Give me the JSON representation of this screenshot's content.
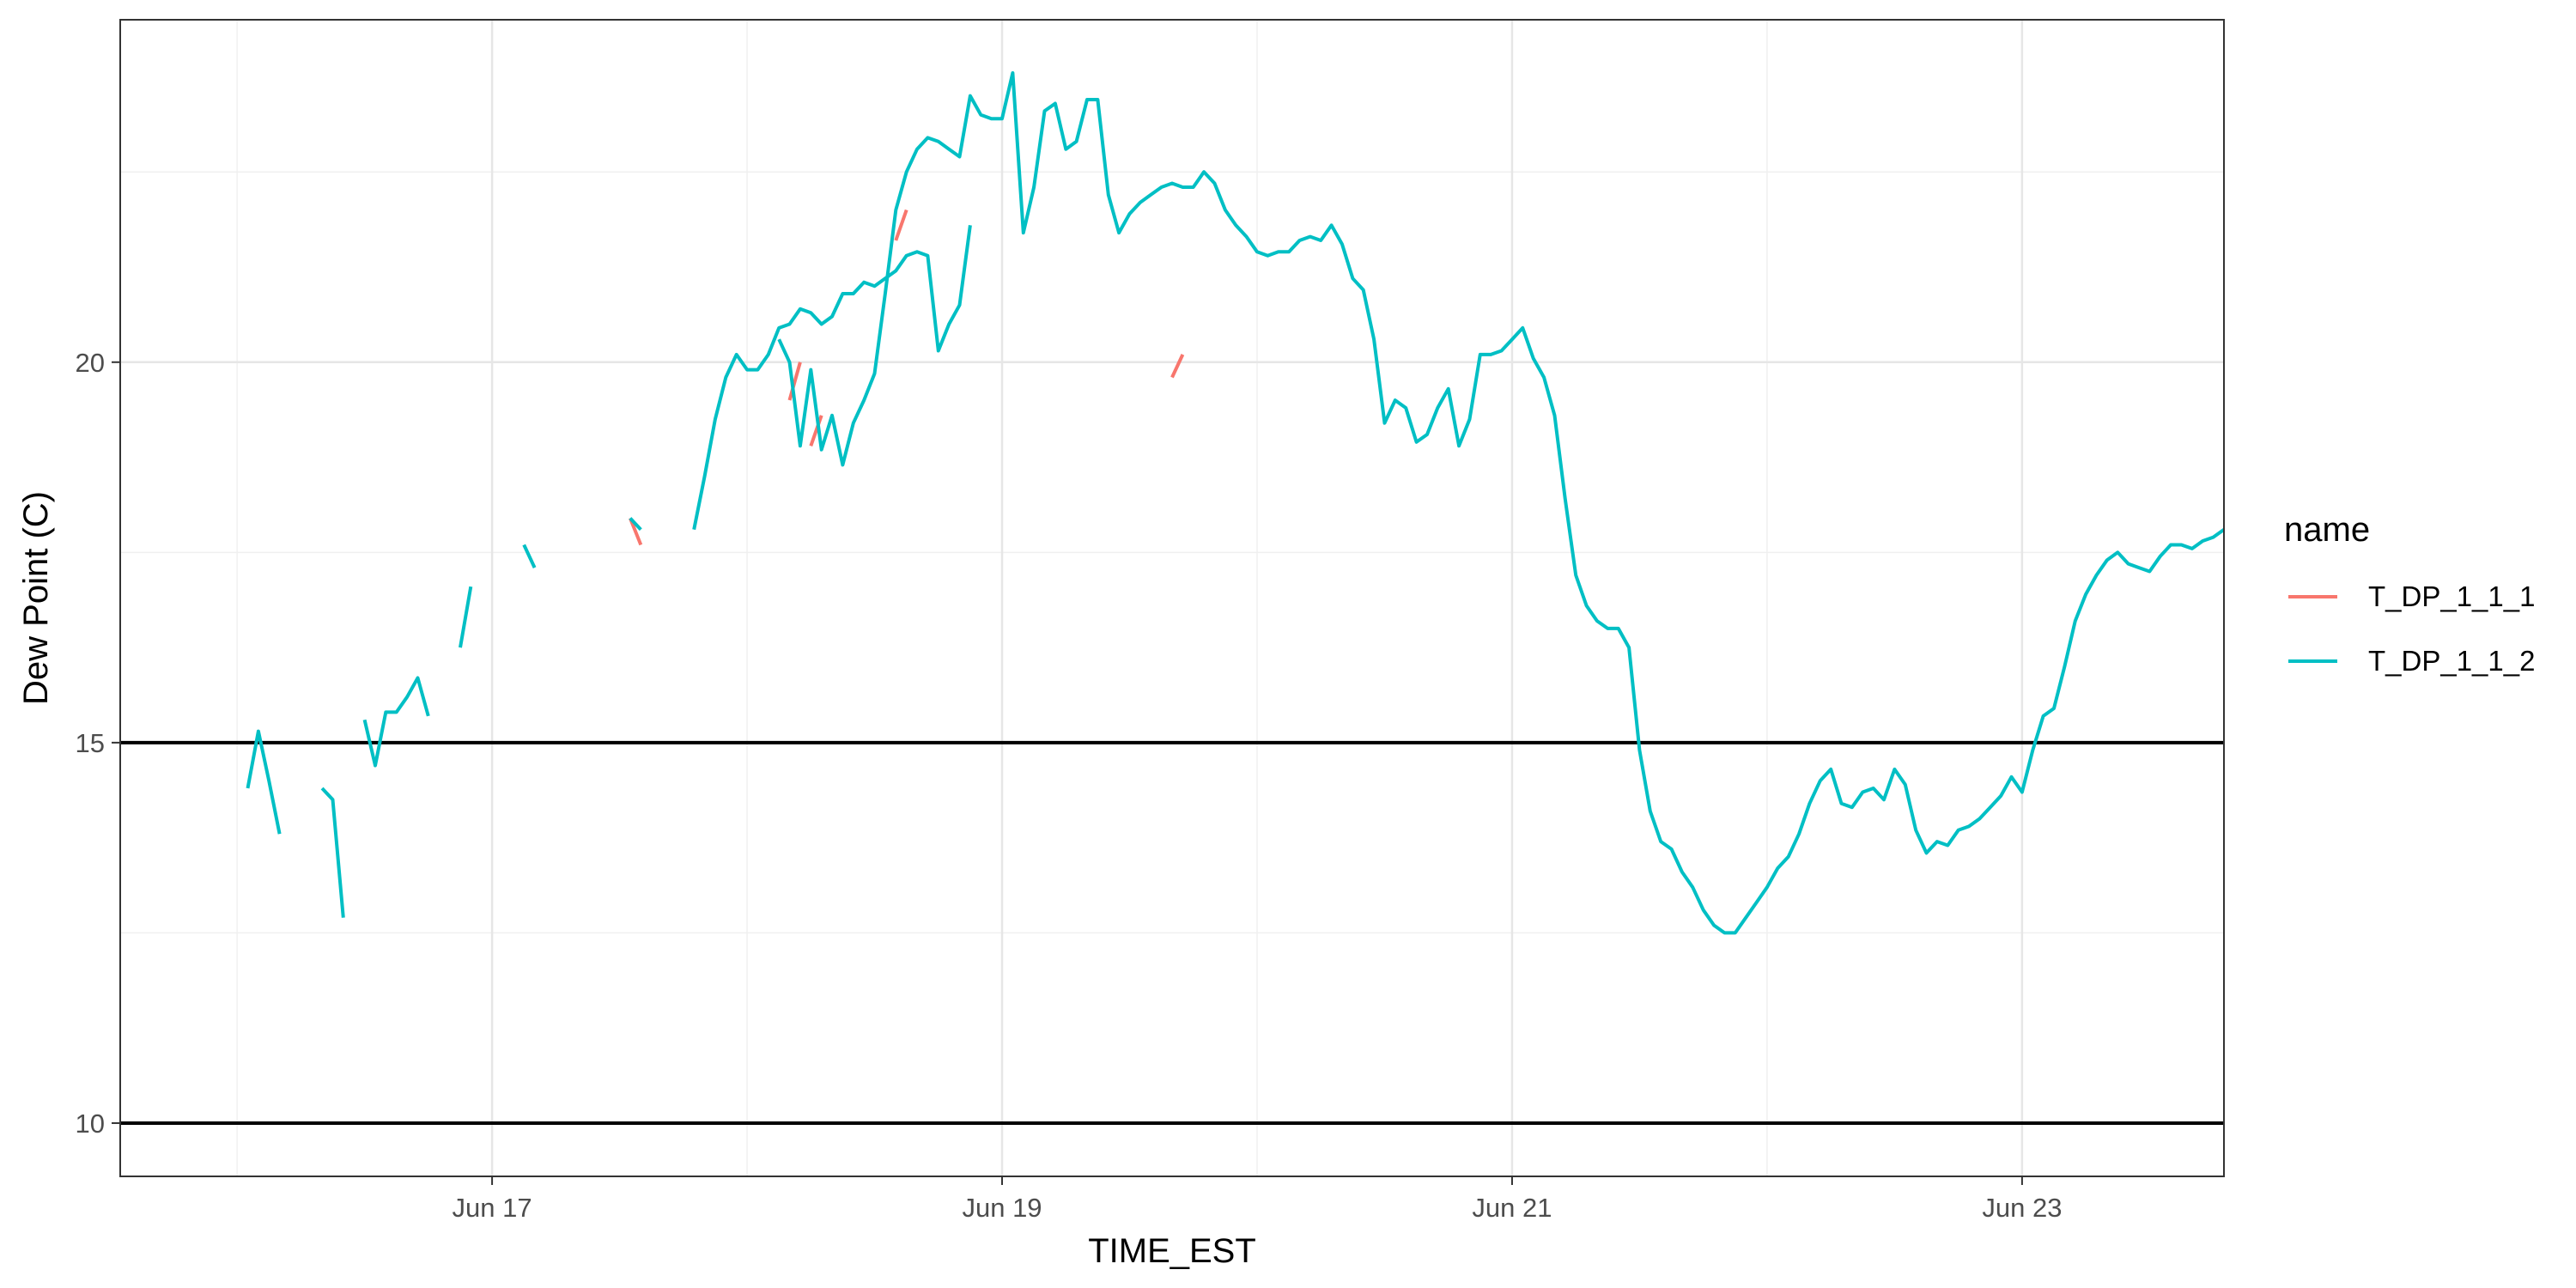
{
  "chart_data": {
    "type": "line",
    "xlabel": "TIME_EST",
    "ylabel": "Dew Point (C)",
    "x_range": [
      "2023-06-15T13:00",
      "2023-06-23T19:00"
    ],
    "ylim": [
      9.3,
      24.5
    ],
    "x_ticks": [
      {
        "label": "Jun 17",
        "t": "2023-06-17T00:00"
      },
      {
        "label": "Jun 19",
        "t": "2023-06-19T00:00"
      },
      {
        "label": "Jun 21",
        "t": "2023-06-21T00:00"
      },
      {
        "label": "Jun 23",
        "t": "2023-06-23T00:00"
      }
    ],
    "y_ticks": [
      10,
      15,
      20
    ],
    "y_minor_ticks": [
      12.5,
      17.5,
      22.5
    ],
    "grid": true,
    "reference_lines": [
      10,
      15
    ],
    "legend": {
      "title": "name",
      "position": "right"
    },
    "series": [
      {
        "name": "T_DP_1_1_1",
        "color": "#F8766D",
        "segments": [
          [
            [
              "2023-06-17T13:00",
              17.95
            ],
            [
              "2023-06-17T14:00",
              17.6
            ]
          ],
          [
            [
              "2023-06-18T04:00",
              19.5
            ],
            [
              "2023-06-18T05:00",
              20.0
            ]
          ],
          [
            [
              "2023-06-18T06:00",
              18.9
            ],
            [
              "2023-06-18T07:00",
              19.3
            ]
          ],
          [
            [
              "2023-06-18T14:00",
              21.6
            ],
            [
              "2023-06-18T15:00",
              22.0
            ]
          ],
          [
            [
              "2023-06-19T16:00",
              19.8
            ],
            [
              "2023-06-19T17:00",
              20.1
            ]
          ]
        ]
      },
      {
        "name": "T_DP_1_1_2",
        "color": "#00BFC4",
        "segments": [
          [
            [
              "2023-06-16T01:00",
              14.4
            ],
            [
              "2023-06-16T02:00",
              15.15
            ],
            [
              "2023-06-16T03:00",
              14.5
            ],
            [
              "2023-06-16T04:00",
              13.8
            ]
          ],
          [
            [
              "2023-06-16T08:00",
              14.4
            ],
            [
              "2023-06-16T09:00",
              14.25
            ],
            [
              "2023-06-16T10:00",
              12.7
            ]
          ],
          [
            [
              "2023-06-16T12:00",
              15.3
            ],
            [
              "2023-06-16T13:00",
              14.7
            ],
            [
              "2023-06-16T14:00",
              15.4
            ],
            [
              "2023-06-16T15:00",
              15.4
            ],
            [
              "2023-06-16T16:00",
              15.6
            ],
            [
              "2023-06-16T17:00",
              15.85
            ],
            [
              "2023-06-16T18:00",
              15.35
            ]
          ],
          [
            [
              "2023-06-16T21:00",
              16.25
            ],
            [
              "2023-06-16T22:00",
              17.05
            ]
          ],
          [
            [
              "2023-06-17T03:00",
              17.6
            ],
            [
              "2023-06-17T04:00",
              17.3
            ]
          ],
          [
            [
              "2023-06-17T13:00",
              17.95
            ],
            [
              "2023-06-17T14:00",
              17.8
            ]
          ],
          [
            [
              "2023-06-17T19:00",
              17.8
            ],
            [
              "2023-06-17T20:00",
              18.5
            ],
            [
              "2023-06-17T21:00",
              19.25
            ],
            [
              "2023-06-17T22:00",
              19.8
            ],
            [
              "2023-06-17T23:00",
              20.1
            ],
            [
              "2023-06-18T00:00",
              19.9
            ],
            [
              "2023-06-18T01:00",
              19.9
            ],
            [
              "2023-06-18T02:00",
              20.1
            ],
            [
              "2023-06-18T03:00",
              20.45
            ],
            [
              "2023-06-18T04:00",
              20.5
            ],
            [
              "2023-06-18T05:00",
              20.7
            ],
            [
              "2023-06-18T06:00",
              20.65
            ],
            [
              "2023-06-18T07:00",
              20.5
            ],
            [
              "2023-06-18T08:00",
              20.6
            ],
            [
              "2023-06-18T09:00",
              20.9
            ],
            [
              "2023-06-18T10:00",
              20.9
            ],
            [
              "2023-06-18T11:00",
              21.05
            ],
            [
              "2023-06-18T12:00",
              21.0
            ],
            [
              "2023-06-18T13:00",
              21.1
            ],
            [
              "2023-06-18T14:00",
              21.2
            ],
            [
              "2023-06-18T15:00",
              21.4
            ],
            [
              "2023-06-18T16:00",
              21.45
            ],
            [
              "2023-06-18T17:00",
              21.4
            ],
            [
              "2023-06-18T18:00",
              20.15
            ],
            [
              "2023-06-18T19:00",
              20.5
            ],
            [
              "2023-06-18T20:00",
              20.75
            ],
            [
              "2023-06-18T21:00",
              21.8
            ]
          ],
          [
            [
              "2023-06-18T03:00",
              20.3
            ],
            [
              "2023-06-18T04:00",
              20.0
            ],
            [
              "2023-06-18T05:00",
              18.9
            ],
            [
              "2023-06-18T06:00",
              19.9
            ],
            [
              "2023-06-18T07:00",
              18.85
            ],
            [
              "2023-06-18T08:00",
              19.3
            ],
            [
              "2023-06-18T09:00",
              18.65
            ],
            [
              "2023-06-18T10:00",
              19.2
            ],
            [
              "2023-06-18T11:00",
              19.5
            ],
            [
              "2023-06-18T12:00",
              19.85
            ],
            [
              "2023-06-18T13:00",
              20.9
            ],
            [
              "2023-06-18T14:00",
              22.0
            ],
            [
              "2023-06-18T15:00",
              22.5
            ],
            [
              "2023-06-18T16:00",
              22.8
            ],
            [
              "2023-06-18T17:00",
              22.95
            ],
            [
              "2023-06-18T18:00",
              22.9
            ],
            [
              "2023-06-18T19:00",
              22.8
            ],
            [
              "2023-06-18T20:00",
              22.7
            ],
            [
              "2023-06-18T21:00",
              23.5
            ],
            [
              "2023-06-18T22:00",
              23.25
            ],
            [
              "2023-06-18T23:00",
              23.2
            ],
            [
              "2023-06-19T00:00",
              23.2
            ],
            [
              "2023-06-19T01:00",
              23.8
            ],
            [
              "2023-06-19T02:00",
              21.7
            ],
            [
              "2023-06-19T03:00",
              22.3
            ],
            [
              "2023-06-19T04:00",
              23.3
            ],
            [
              "2023-06-19T05:00",
              23.4
            ],
            [
              "2023-06-19T06:00",
              22.8
            ],
            [
              "2023-06-19T07:00",
              22.9
            ],
            [
              "2023-06-19T08:00",
              23.45
            ],
            [
              "2023-06-19T09:00",
              23.45
            ],
            [
              "2023-06-19T10:00",
              22.2
            ],
            [
              "2023-06-19T11:00",
              21.7
            ],
            [
              "2023-06-19T12:00",
              21.95
            ],
            [
              "2023-06-19T13:00",
              22.1
            ],
            [
              "2023-06-19T14:00",
              22.2
            ],
            [
              "2023-06-19T15:00",
              22.3
            ],
            [
              "2023-06-19T16:00",
              22.35
            ],
            [
              "2023-06-19T17:00",
              22.3
            ],
            [
              "2023-06-19T18:00",
              22.3
            ],
            [
              "2023-06-19T19:00",
              22.5
            ],
            [
              "2023-06-19T20:00",
              22.35
            ],
            [
              "2023-06-19T21:00",
              22.0
            ],
            [
              "2023-06-19T22:00",
              21.8
            ],
            [
              "2023-06-19T23:00",
              21.65
            ],
            [
              "2023-06-20T00:00",
              21.45
            ],
            [
              "2023-06-20T01:00",
              21.4
            ],
            [
              "2023-06-20T02:00",
              21.45
            ],
            [
              "2023-06-20T03:00",
              21.45
            ],
            [
              "2023-06-20T04:00",
              21.6
            ],
            [
              "2023-06-20T05:00",
              21.65
            ],
            [
              "2023-06-20T06:00",
              21.6
            ],
            [
              "2023-06-20T07:00",
              21.8
            ],
            [
              "2023-06-20T08:00",
              21.55
            ],
            [
              "2023-06-20T09:00",
              21.1
            ],
            [
              "2023-06-20T10:00",
              20.95
            ],
            [
              "2023-06-20T11:00",
              20.3
            ],
            [
              "2023-06-20T12:00",
              19.2
            ],
            [
              "2023-06-20T13:00",
              19.5
            ],
            [
              "2023-06-20T14:00",
              19.4
            ],
            [
              "2023-06-20T15:00",
              18.95
            ],
            [
              "2023-06-20T16:00",
              19.05
            ],
            [
              "2023-06-20T17:00",
              19.4
            ],
            [
              "2023-06-20T18:00",
              19.65
            ],
            [
              "2023-06-20T19:00",
              18.9
            ],
            [
              "2023-06-20T20:00",
              19.25
            ],
            [
              "2023-06-20T21:00",
              20.1
            ],
            [
              "2023-06-20T22:00",
              20.1
            ],
            [
              "2023-06-20T23:00",
              20.15
            ],
            [
              "2023-06-21T00:00",
              20.3
            ],
            [
              "2023-06-21T01:00",
              20.45
            ],
            [
              "2023-06-21T02:00",
              20.05
            ],
            [
              "2023-06-21T03:00",
              19.8
            ],
            [
              "2023-06-21T04:00",
              19.3
            ],
            [
              "2023-06-21T05:00",
              18.2
            ],
            [
              "2023-06-21T06:00",
              17.2
            ],
            [
              "2023-06-21T07:00",
              16.8
            ],
            [
              "2023-06-21T08:00",
              16.6
            ],
            [
              "2023-06-21T09:00",
              16.5
            ],
            [
              "2023-06-21T10:00",
              16.5
            ],
            [
              "2023-06-21T11:00",
              16.25
            ],
            [
              "2023-06-21T12:00",
              14.9
            ],
            [
              "2023-06-21T13:00",
              14.1
            ],
            [
              "2023-06-21T14:00",
              13.7
            ],
            [
              "2023-06-21T15:00",
              13.6
            ],
            [
              "2023-06-21T16:00",
              13.3
            ],
            [
              "2023-06-21T17:00",
              13.1
            ],
            [
              "2023-06-21T18:00",
              12.8
            ],
            [
              "2023-06-21T19:00",
              12.6
            ],
            [
              "2023-06-21T20:00",
              12.5
            ],
            [
              "2023-06-21T21:00",
              12.5
            ],
            [
              "2023-06-21T22:00",
              12.7
            ],
            [
              "2023-06-21T23:00",
              12.9
            ],
            [
              "2023-06-22T00:00",
              13.1
            ],
            [
              "2023-06-22T01:00",
              13.35
            ],
            [
              "2023-06-22T02:00",
              13.5
            ],
            [
              "2023-06-22T03:00",
              13.8
            ],
            [
              "2023-06-22T04:00",
              14.2
            ],
            [
              "2023-06-22T05:00",
              14.5
            ],
            [
              "2023-06-22T06:00",
              14.65
            ],
            [
              "2023-06-22T07:00",
              14.2
            ],
            [
              "2023-06-22T08:00",
              14.15
            ],
            [
              "2023-06-22T09:00",
              14.35
            ],
            [
              "2023-06-22T10:00",
              14.4
            ],
            [
              "2023-06-22T11:00",
              14.25
            ],
            [
              "2023-06-22T12:00",
              14.65
            ],
            [
              "2023-06-22T13:00",
              14.45
            ],
            [
              "2023-06-22T14:00",
              13.85
            ],
            [
              "2023-06-22T15:00",
              13.55
            ],
            [
              "2023-06-22T16:00",
              13.7
            ],
            [
              "2023-06-22T17:00",
              13.65
            ],
            [
              "2023-06-22T18:00",
              13.85
            ],
            [
              "2023-06-22T19:00",
              13.9
            ],
            [
              "2023-06-22T20:00",
              14.0
            ],
            [
              "2023-06-22T21:00",
              14.15
            ],
            [
              "2023-06-22T22:00",
              14.3
            ],
            [
              "2023-06-22T23:00",
              14.55
            ],
            [
              "2023-06-23T00:00",
              14.35
            ],
            [
              "2023-06-23T01:00",
              14.9
            ],
            [
              "2023-06-23T02:00",
              15.35
            ],
            [
              "2023-06-23T03:00",
              15.45
            ],
            [
              "2023-06-23T04:00",
              16.0
            ],
            [
              "2023-06-23T05:00",
              16.6
            ],
            [
              "2023-06-23T06:00",
              16.95
            ],
            [
              "2023-06-23T07:00",
              17.2
            ],
            [
              "2023-06-23T08:00",
              17.4
            ],
            [
              "2023-06-23T09:00",
              17.5
            ],
            [
              "2023-06-23T10:00",
              17.35
            ],
            [
              "2023-06-23T11:00",
              17.3
            ],
            [
              "2023-06-23T12:00",
              17.25
            ],
            [
              "2023-06-23T13:00",
              17.45
            ],
            [
              "2023-06-23T14:00",
              17.6
            ],
            [
              "2023-06-23T15:00",
              17.6
            ],
            [
              "2023-06-23T16:00",
              17.55
            ],
            [
              "2023-06-23T17:00",
              17.65
            ],
            [
              "2023-06-23T18:00",
              17.7
            ],
            [
              "2023-06-23T19:00",
              17.8
            ]
          ]
        ]
      }
    ]
  }
}
